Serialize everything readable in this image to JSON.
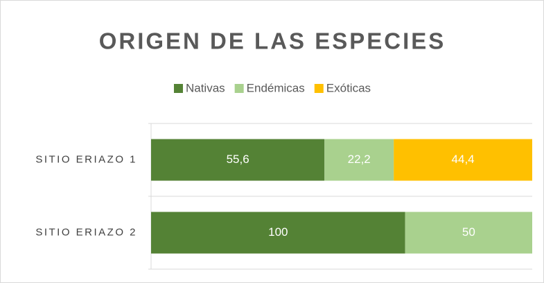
{
  "chart_data": {
    "type": "bar",
    "orientation": "horizontal",
    "stacking": "percent",
    "title": "ORIGEN DE LAS ESPECIES",
    "categories": [
      "SITIO ERIAZO 1",
      "SITIO ERIAZO 2"
    ],
    "series": [
      {
        "name": "Nativas",
        "color": "#548235",
        "values": [
          55.6,
          100
        ],
        "value_labels": [
          "55,6",
          "100"
        ]
      },
      {
        "name": "Endémicas",
        "color": "#a9d18e",
        "values": [
          22.2,
          50
        ],
        "value_labels": [
          "22,2",
          "50"
        ]
      },
      {
        "name": "Exóticas",
        "color": "#ffc000",
        "values": [
          44.4,
          null
        ],
        "value_labels": [
          "44,4",
          null
        ]
      }
    ],
    "legend": "top"
  }
}
